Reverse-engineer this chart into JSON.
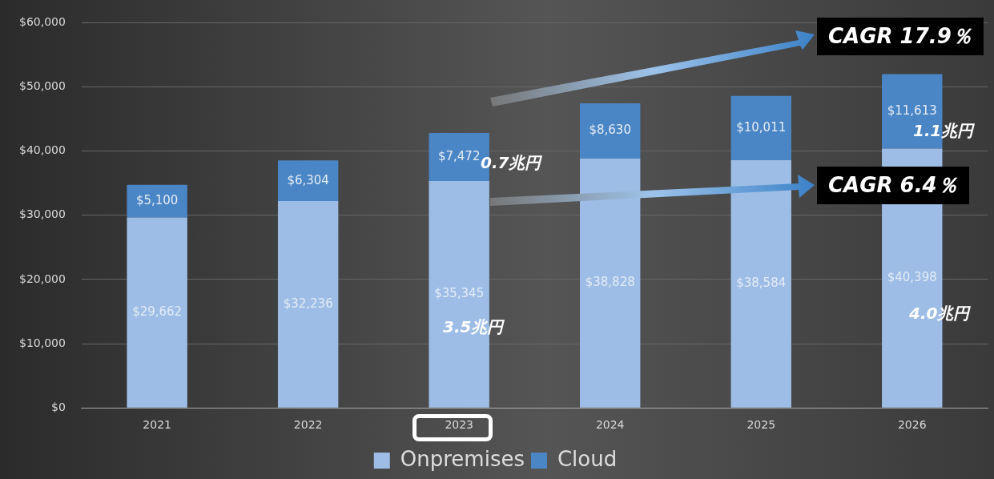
{
  "chart_data": {
    "type": "bar",
    "stacked": true,
    "categories": [
      "2021",
      "2022",
      "2023",
      "2024",
      "2025",
      "2026"
    ],
    "series": [
      {
        "name": "Onpremises",
        "color": "#9dbde6",
        "values": [
          29662,
          32236,
          35345,
          38828,
          38584,
          40398
        ],
        "value_labels": [
          "$29,662",
          "$32,236",
          "$35,345",
          "$38,828",
          "$38,584",
          "$40,398"
        ]
      },
      {
        "name": "Cloud",
        "color": "#4a86c5",
        "values": [
          5100,
          6304,
          7472,
          8630,
          10011,
          11613
        ],
        "value_labels": [
          "$5,100",
          "$6,304",
          "$7,472",
          "$8,630",
          "$10,011",
          "$11,613"
        ]
      }
    ],
    "ylim": [
      0,
      60000
    ],
    "yticks": [
      {
        "value": 0,
        "label": "$0"
      },
      {
        "value": 10000,
        "label": "$10,000"
      },
      {
        "value": 20000,
        "label": "$20,000"
      },
      {
        "value": 30000,
        "label": "$30,000"
      },
      {
        "value": 40000,
        "label": "$40,000"
      },
      {
        "value": 50000,
        "label": "$50,000"
      },
      {
        "value": 60000,
        "label": "$60,000"
      }
    ],
    "grid": "y",
    "legend": "bottom",
    "annotations": [
      "CAGR 17.9％",
      "CAGR 6.4％",
      "0.7兆円",
      "3.5兆円",
      "1.1兆円",
      "4.0兆円"
    ]
  }
}
